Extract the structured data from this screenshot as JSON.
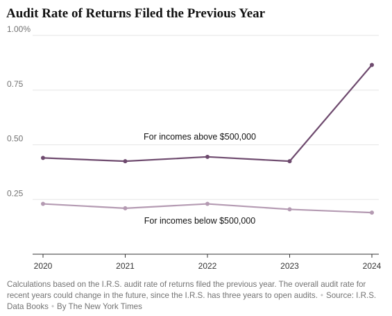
{
  "chart_data": {
    "type": "line",
    "title": "Audit Rate of Returns Filed the Previous Year",
    "x": [
      "2020",
      "2021",
      "2022",
      "2023",
      "2024"
    ],
    "y_ticks": [
      "0.25",
      "0.50",
      "0.75",
      "1.00%"
    ],
    "y_tick_values": [
      0.25,
      0.5,
      0.75,
      1.0
    ],
    "ylim": [
      0,
      1.0
    ],
    "grid": true,
    "series": [
      {
        "name": "For incomes above $500,000",
        "color": "#6e4a6e",
        "values": [
          0.44,
          0.425,
          0.445,
          0.425,
          0.865
        ]
      },
      {
        "name": "For incomes below $500,000",
        "color": "#b49ab2",
        "values": [
          0.23,
          0.21,
          0.23,
          0.205,
          0.19
        ]
      }
    ]
  },
  "footer": {
    "note": "Calculations based on the I.R.S. audit rate of returns filed the previous year. The overall audit rate for recent years could change in the future, since the I.R.S. has three years to open audits.",
    "separator": "•",
    "source": "Source: I.R.S. Data Books",
    "credit": "By The New York Times"
  }
}
